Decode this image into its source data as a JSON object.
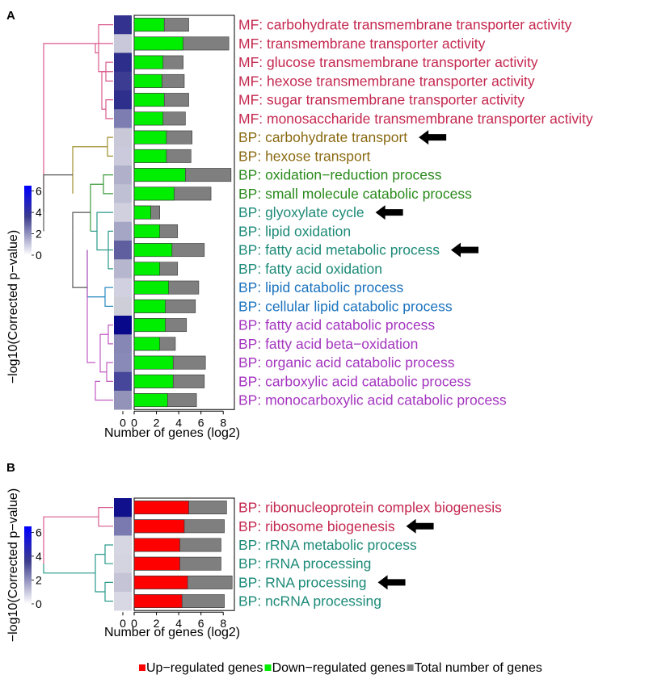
{
  "chart_data": [
    {
      "panel_label": "A",
      "type": "bar",
      "orientation": "horizontal",
      "xlabel": "Number of genes (log2)",
      "xticks": [
        "0",
        "2",
        "4",
        "6",
        "8"
      ],
      "xlim": [
        0,
        9
      ],
      "colorbar": {
        "label": "−log10(Corrected p−value)",
        "ticks": [
          "0",
          "2",
          "4",
          "6"
        ],
        "range": [
          0,
          6.5
        ],
        "low_color": "#ffffff",
        "high_color": "#0000ff"
      },
      "heat_colors": [
        "#33338f",
        "#c8c8da",
        "#2d2d8c",
        "#3c3c92",
        "#2e2e8c",
        "#7d7db2",
        "#c8c8d8",
        "#cacadc",
        "#b0b0cb",
        "#c0c0d5",
        "#d0d0df",
        "#a5a5c6",
        "#5f5fa0",
        "#b6b6ce",
        "#d0d0e0",
        "#ceced9",
        "#08088a",
        "#8787b6",
        "#8a8ab8",
        "#46469a",
        "#9393ba"
      ],
      "categories": [
        {
          "label": "MF: carbohydrate transmembrane transporter activity",
          "color": "#c4284f",
          "down": 2.7,
          "total": 4.9,
          "pvalue": 5.0,
          "arrow": false
        },
        {
          "label": "MF: transmembrane transporter activity",
          "color": "#c4284f",
          "down": 4.4,
          "total": 8.5,
          "pvalue": 0.8,
          "arrow": false
        },
        {
          "label": "MF: glucose transmembrane transporter activity",
          "color": "#c4284f",
          "down": 2.6,
          "total": 4.4,
          "pvalue": 5.1,
          "arrow": false
        },
        {
          "label": "MF: hexose transmembrane transporter activity",
          "color": "#c4284f",
          "down": 2.5,
          "total": 4.5,
          "pvalue": 4.9,
          "arrow": false
        },
        {
          "label": "MF: sugar transmembrane transporter activity",
          "color": "#c4284f",
          "down": 2.7,
          "total": 4.9,
          "pvalue": 5.1,
          "arrow": false
        },
        {
          "label": "MF: monosaccharide transmembrane transporter activity",
          "color": "#c4284f",
          "down": 2.6,
          "total": 4.6,
          "pvalue": 3.0,
          "arrow": false
        },
        {
          "label": "BP: carbohydrate transport",
          "color": "#8a6a12",
          "down": 2.9,
          "total": 5.2,
          "pvalue": 0.8,
          "arrow": true
        },
        {
          "label": "BP: hexose transport",
          "color": "#8a6a12",
          "down": 2.9,
          "total": 5.1,
          "pvalue": 0.8,
          "arrow": false
        },
        {
          "label": "BP: oxidation−reduction process",
          "color": "#2a8a1c",
          "down": 4.6,
          "total": 8.7,
          "pvalue": 1.3,
          "arrow": false
        },
        {
          "label": "BP: small molecule catabolic process",
          "color": "#2a8a1c",
          "down": 3.6,
          "total": 6.9,
          "pvalue": 1.0,
          "arrow": false
        },
        {
          "label": "BP: glyoxylate cycle",
          "color": "#1c8a78",
          "down": 1.5,
          "total": 2.3,
          "pvalue": 0.7,
          "arrow": true
        },
        {
          "label": "BP: lipid oxidation",
          "color": "#1c8a78",
          "down": 2.3,
          "total": 3.9,
          "pvalue": 1.6,
          "arrow": false
        },
        {
          "label": "BP: fatty acid metabolic process",
          "color": "#1c8a78",
          "down": 3.4,
          "total": 6.3,
          "pvalue": 3.6,
          "arrow": true
        },
        {
          "label": "BP: fatty acid oxidation",
          "color": "#1c8a78",
          "down": 2.3,
          "total": 3.9,
          "pvalue": 1.2,
          "arrow": false
        },
        {
          "label": "BP: lipid catabolic process",
          "color": "#1a72be",
          "down": 3.1,
          "total": 5.8,
          "pvalue": 0.7,
          "arrow": false
        },
        {
          "label": "BP: cellular lipid catabolic process",
          "color": "#1a72be",
          "down": 2.8,
          "total": 5.5,
          "pvalue": 0.7,
          "arrow": false
        },
        {
          "label": "BP: fatty acid catabolic process",
          "color": "#a334be",
          "down": 2.8,
          "total": 4.7,
          "pvalue": 6.3,
          "arrow": false
        },
        {
          "label": "BP: fatty acid beta−oxidation",
          "color": "#a334be",
          "down": 2.3,
          "total": 3.7,
          "pvalue": 2.8,
          "arrow": false
        },
        {
          "label": "BP: organic acid catabolic process",
          "color": "#a334be",
          "down": 3.5,
          "total": 6.4,
          "pvalue": 2.7,
          "arrow": false
        },
        {
          "label": "BP: carboxylic acid catabolic process",
          "color": "#a334be",
          "down": 3.5,
          "total": 6.3,
          "pvalue": 4.3,
          "arrow": false
        },
        {
          "label": "BP: monocarboxylic acid catabolic process",
          "color": "#a334be",
          "down": 3.0,
          "total": 5.6,
          "pvalue": 2.5,
          "arrow": false
        }
      ]
    },
    {
      "panel_label": "B",
      "type": "bar",
      "orientation": "horizontal",
      "xlabel": "Number of genes (log2)",
      "xticks": [
        "0",
        "2",
        "4",
        "6",
        "8"
      ],
      "xlim": [
        0,
        9
      ],
      "colorbar": {
        "label": "−log10(Corrected p−value)",
        "ticks": [
          "0",
          "2",
          "4",
          "6"
        ],
        "range": [
          0,
          6.5
        ],
        "low_color": "#ffffff",
        "high_color": "#0000ff"
      },
      "heat_colors": [
        "#10108c",
        "#7a7ab0",
        "#d6d6e2",
        "#d4d4e0",
        "#c4c4d6",
        "#d8d8e4"
      ],
      "categories": [
        {
          "label": "BP: ribonucleoprotein complex biogenesis",
          "color": "#c4284f",
          "up": 4.9,
          "total": 8.3,
          "pvalue": 6.0,
          "arrow": false
        },
        {
          "label": "BP: ribosome biogenesis",
          "color": "#c4284f",
          "up": 4.5,
          "total": 8.1,
          "pvalue": 3.5,
          "arrow": true
        },
        {
          "label": "BP: rRNA metabolic process",
          "color": "#1c8a78",
          "up": 4.1,
          "total": 7.8,
          "pvalue": 0.6,
          "arrow": false
        },
        {
          "label": "BP: rRNA processing",
          "color": "#1c8a78",
          "up": 4.1,
          "total": 7.8,
          "pvalue": 0.6,
          "arrow": false
        },
        {
          "label": "BP: RNA processing",
          "color": "#1c8a78",
          "up": 4.8,
          "total": 8.8,
          "pvalue": 1.1,
          "arrow": true
        },
        {
          "label": "BP: ncRNA processing",
          "color": "#1c8a78",
          "up": 4.3,
          "total": 8.1,
          "pvalue": 0.5,
          "arrow": false
        }
      ]
    }
  ],
  "legend": [
    {
      "label": "Up−regulated genes",
      "color": "#ff0000"
    },
    {
      "label": "Down−regulated genes",
      "color": "#00ee00"
    },
    {
      "label": "Total number of genes",
      "color": "#7f7f7f"
    }
  ],
  "colors": {
    "up": "#ff0000",
    "down": "#00ee00",
    "total": "#7f7f7f",
    "arrow": "#000000",
    "frame": "#000000",
    "tree_default": "#555555",
    "tree_green": "#2a8a1c",
    "tree_olive": "#a09030"
  }
}
